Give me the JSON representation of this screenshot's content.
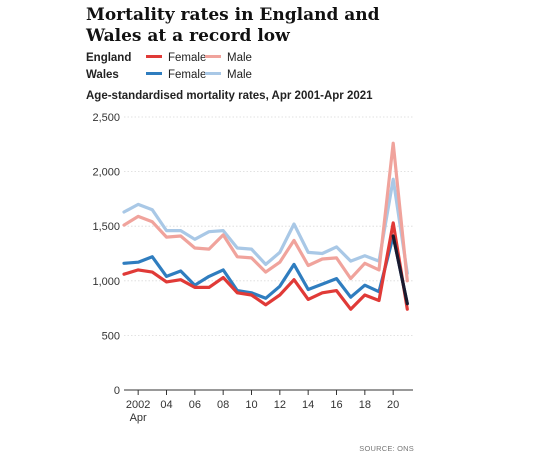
{
  "title": "Mortality rates in England and Wales at a record low",
  "subtitle": "Age-standardised mortality rates, Apr 2001-Apr 2021",
  "source": "SOURCE: ONS",
  "legend": {
    "england_label": "England",
    "wales_label": "Wales",
    "female_label": "Female",
    "male_label": "Male"
  },
  "colors": {
    "england_female": "#e03a37",
    "england_male": "#f0a39c",
    "wales_female": "#2f7dbf",
    "wales_male": "#a9c8e6",
    "overlap": "#1a1a2e"
  },
  "chart_data": {
    "type": "line",
    "title": "Mortality rates in England and Wales at a record low",
    "ylim": [
      0,
      2500
    ],
    "yticks": [
      0,
      500,
      1000,
      1500,
      2000,
      2500
    ],
    "ytick_labels": [
      "0",
      "500",
      "1,000",
      "1,500",
      "2,000",
      "2,500"
    ],
    "xlim": [
      2001,
      2021.4
    ],
    "xticks": [
      2002,
      2004,
      2006,
      2008,
      2010,
      2012,
      2014,
      2016,
      2018,
      2020
    ],
    "xtick_labels": [
      "2002",
      "04",
      "06",
      "08",
      "10",
      "12",
      "14",
      "16",
      "18",
      "20"
    ],
    "xtick_sublabel": "Apr",
    "x": [
      2001,
      2002,
      2003,
      2004,
      2005,
      2006,
      2007,
      2008,
      2009,
      2010,
      2011,
      2012,
      2013,
      2014,
      2015,
      2016,
      2017,
      2018,
      2019,
      2020,
      2021
    ],
    "series": [
      {
        "key": "wales_male",
        "legend": "wales.male",
        "values": [
          1630,
          1700,
          1650,
          1460,
          1460,
          1380,
          1450,
          1460,
          1300,
          1290,
          1150,
          1260,
          1520,
          1260,
          1250,
          1310,
          1180,
          1230,
          1180,
          1930,
          1070
        ]
      },
      {
        "key": "england_male",
        "legend": "england.male",
        "values": [
          1510,
          1590,
          1540,
          1400,
          1410,
          1300,
          1290,
          1420,
          1220,
          1210,
          1080,
          1170,
          1370,
          1140,
          1200,
          1210,
          1020,
          1160,
          1100,
          2260,
          1000
        ]
      },
      {
        "key": "wales_female",
        "legend": "wales.female",
        "values": [
          1160,
          1170,
          1220,
          1040,
          1090,
          960,
          1040,
          1100,
          910,
          890,
          840,
          950,
          1150,
          920,
          970,
          1020,
          850,
          960,
          900,
          1410,
          790
        ]
      },
      {
        "key": "england_female",
        "legend": "england.female",
        "values": [
          1060,
          1100,
          1080,
          990,
          1010,
          940,
          940,
          1030,
          890,
          870,
          780,
          870,
          1010,
          830,
          890,
          910,
          740,
          870,
          820,
          1530,
          740
        ]
      }
    ]
  }
}
